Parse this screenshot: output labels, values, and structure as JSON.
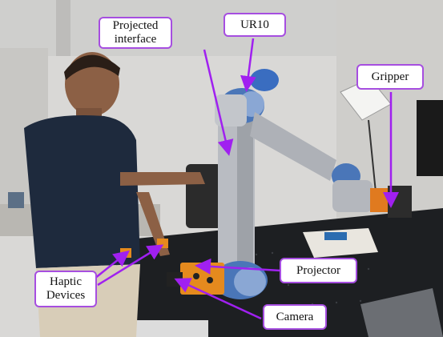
{
  "figure": {
    "colors": {
      "callout_border": "#a64ee0",
      "arrow": "#a020f0"
    },
    "callouts": {
      "projected_interface": {
        "line1": "Projected",
        "line2": "interface"
      },
      "ur10": {
        "label": "UR10"
      },
      "gripper": {
        "label": "Gripper"
      },
      "haptic_devices": {
        "line1": "Haptic",
        "line2": "Devices"
      },
      "projector": {
        "label": "Projector"
      },
      "camera": {
        "label": "Camera"
      }
    }
  }
}
